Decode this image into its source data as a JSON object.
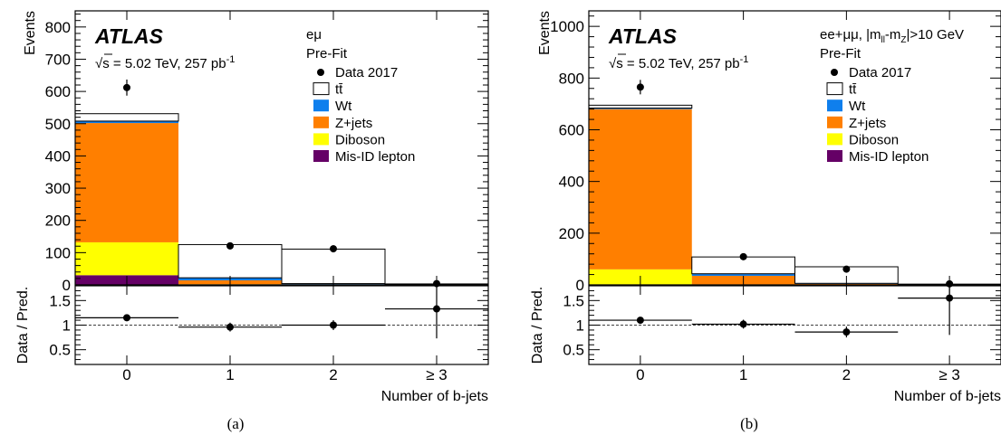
{
  "chart_data": [
    {
      "type": "bar",
      "panel_label": "(a)",
      "experiment": "ATLAS",
      "energy_prefix": "√s = 5.02 TeV, 257 pb",
      "energy_sup": "-1",
      "channel": "eμ",
      "fit_label": "Pre-Fit",
      "categories": [
        "0",
        "1",
        "2",
        "≥ 3"
      ],
      "series": [
        {
          "name": "Mis-ID lepton",
          "color": "#650066",
          "values": [
            30,
            0,
            0,
            0
          ]
        },
        {
          "name": "Diboson",
          "color": "#ffff00",
          "values": [
            102,
            2,
            1,
            0.5
          ]
        },
        {
          "name": "Z+jets",
          "color": "#ff7f00",
          "values": [
            370,
            12,
            1,
            0.5
          ]
        },
        {
          "name": "Wt",
          "color": "#0f7fed",
          "values": [
            6,
            8,
            2,
            0.5
          ]
        },
        {
          "name": "tt̄",
          "color": "#ffffff",
          "values": [
            23,
            103,
            107,
            1.5
          ]
        }
      ],
      "data": {
        "name": "Data 2017",
        "values": [
          612,
          121,
          112,
          4
        ],
        "errors": [
          25,
          11,
          11,
          2
        ]
      },
      "legend_order": [
        "Data 2017",
        "tt̄",
        "Wt",
        "Z+jets",
        "Diboson",
        "Mis-ID lepton"
      ],
      "ratio": {
        "values": [
          1.15,
          0.96,
          1.0,
          1.33
        ],
        "errors": [
          0.05,
          0.09,
          0.1,
          0.6
        ],
        "ylim": [
          0.2,
          1.8
        ],
        "yticks": [
          "0.5",
          "1",
          "1.5"
        ],
        "ytick_values": [
          0.5,
          1,
          1.5
        ]
      },
      "ylim": [
        0,
        850
      ],
      "yticks": [
        "0",
        "100",
        "200",
        "300",
        "400",
        "500",
        "600",
        "700",
        "800"
      ],
      "ytick_values": [
        0,
        100,
        200,
        300,
        400,
        500,
        600,
        700,
        800
      ],
      "ylabel": "Events",
      "ratio_ylabel": "Data / Pred.",
      "xlabel": "Number of b-jets",
      "legend_position": "top-right"
    },
    {
      "type": "bar",
      "panel_label": "(b)",
      "experiment": "ATLAS",
      "energy_prefix": "√s = 5.02 TeV, 257 pb",
      "energy_sup": "-1",
      "channel": "ee+μμ, |m",
      "channel_sub1": "ll",
      "channel_mid": "-m",
      "channel_sub2": "Z",
      "channel_tail": "|>10 GeV",
      "fit_label": "Pre-Fit",
      "categories": [
        "0",
        "1",
        "2",
        "≥ 3"
      ],
      "series": [
        {
          "name": "Mis-ID lepton",
          "color": "#650066",
          "values": [
            2,
            0,
            0,
            0
          ]
        },
        {
          "name": "Diboson",
          "color": "#ffff00",
          "values": [
            58,
            2,
            1,
            0.5
          ]
        },
        {
          "name": "Z+jets",
          "color": "#ff7f00",
          "values": [
            620,
            33,
            3,
            0.5
          ]
        },
        {
          "name": "Wt",
          "color": "#0f7fed",
          "values": [
            4,
            8,
            2,
            0.5
          ]
        },
        {
          "name": "tt̄",
          "color": "#ffffff",
          "values": [
            11,
            65,
            64,
            1.5
          ]
        }
      ],
      "data": {
        "name": "Data 2017",
        "values": [
          765,
          109,
          61,
          4
        ],
        "errors": [
          28,
          10,
          8,
          2
        ]
      },
      "legend_order": [
        "Data 2017",
        "tt̄",
        "Wt",
        "Z+jets",
        "Diboson",
        "Mis-ID lepton"
      ],
      "ratio": {
        "values": [
          1.1,
          1.02,
          0.86,
          1.55
        ],
        "errors": [
          0.04,
          0.09,
          0.11,
          0.75
        ],
        "ylim": [
          0.2,
          1.8
        ],
        "yticks": [
          "0.5",
          "1",
          "1.5"
        ],
        "ytick_values": [
          0.5,
          1,
          1.5
        ]
      },
      "ylim": [
        0,
        1060
      ],
      "yticks": [
        "0",
        "200",
        "400",
        "600",
        "800",
        "1000"
      ],
      "ytick_values": [
        0,
        200,
        400,
        600,
        800,
        1000
      ],
      "ylabel": "Events",
      "ratio_ylabel": "Data / Pred.",
      "xlabel": "Number of b-jets",
      "legend_position": "top-right"
    }
  ]
}
